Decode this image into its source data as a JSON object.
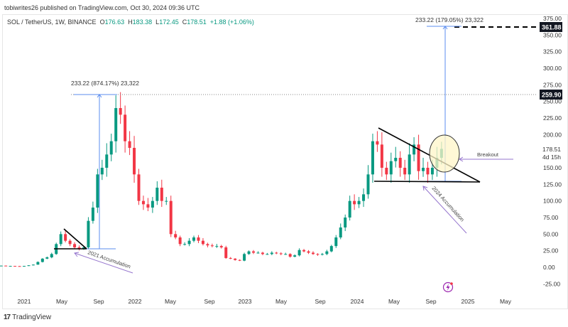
{
  "published": "tobiwrites26 published on TradingView.com, Oct 30, 2024 09:36 UTC",
  "legend": {
    "symbol": "SOL / TetherUS, 1W, BINANCE",
    "o_label": "O",
    "o": "176.63",
    "h_label": "H",
    "h": "183.38",
    "l_label": "L",
    "l": "172.45",
    "c_label": "C",
    "c": "178.51",
    "change": "+1.88 (+1.06%)"
  },
  "brand": "TradingView",
  "colors": {
    "up": "#089981",
    "down": "#f23645",
    "measure": "#5b8def",
    "arrow": "#9575cd",
    "ellipse_fill": "#fff6c8"
  },
  "annotations": {
    "measure_2021": "233.22 (874.17%) 23,322",
    "measure_2024": "233.22 (179.05%) 23,322",
    "accumulation_2021": "2021 Accumulation",
    "accumulation_2024": "2024 Accumulation",
    "breakout": "Breakout"
  },
  "price_labels": {
    "target": "361.88",
    "ath": "259.90",
    "last": "178.51",
    "countdown": "4d 15h"
  },
  "icons": {
    "alert": "lightning-icon",
    "logo": "tradingview-logo"
  },
  "chart_data": {
    "type": "candlestick",
    "title": "SOL / TetherUS, 1W, BINANCE",
    "start": "2020-10",
    "interval": "2 weeks",
    "closes": [
      2.5,
      2,
      2,
      1.8,
      1.5,
      2,
      3,
      4,
      8,
      13,
      15,
      20,
      35,
      50,
      40,
      35,
      30,
      28,
      30,
      70,
      90,
      140,
      150,
      170,
      190,
      240,
      230,
      190,
      180,
      140,
      100,
      95,
      90,
      100,
      120,
      100,
      100,
      50,
      45,
      35,
      35,
      40,
      45,
      40,
      35,
      33,
      32,
      32,
      30,
      14,
      13,
      11,
      10,
      20,
      24,
      22,
      22,
      20,
      20,
      22,
      21,
      20,
      20,
      16,
      18,
      26,
      24,
      22,
      20,
      19,
      20,
      24,
      32,
      45,
      60,
      75,
      100,
      95,
      100,
      110,
      140,
      190,
      185,
      150,
      140,
      160,
      165,
      150,
      140,
      170,
      185,
      145,
      150,
      140,
      150,
      165,
      178.51
    ],
    "ylim": [
      -35,
      385
    ],
    "y_ticks": [
      "375.00",
      "350.00",
      "325.00",
      "300.00",
      "275.00",
      "250.00",
      "225.00",
      "200.00",
      "150.00",
      "125.00",
      "100.00",
      "75.00",
      "50.00",
      "25.00",
      "0.00",
      "-25.00"
    ],
    "x_ticks": [
      "2021",
      "May",
      "Sep",
      "2022",
      "May",
      "Sep",
      "2023",
      "May",
      "Sep",
      "2024",
      "May",
      "Sep",
      "2025",
      "May"
    ],
    "grid": false
  }
}
